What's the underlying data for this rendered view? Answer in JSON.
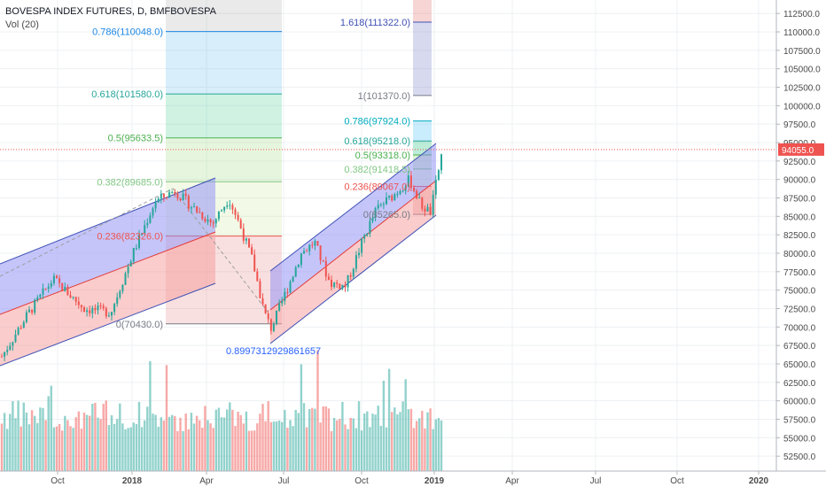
{
  "header": {
    "symbol_line": "BOVESPA INDEX FUTURES, D, BMFBOVESPA",
    "volume_line": "Vol (20)"
  },
  "chart_data": {
    "type": "candlestick",
    "price_axis": {
      "ticks": [
        52500,
        55000,
        57500,
        60000,
        62500,
        65000,
        67500,
        70000,
        72500,
        75000,
        77500,
        80000,
        82500,
        85000,
        87500,
        90000,
        92500,
        95000,
        97500,
        100000,
        102500,
        105000,
        107500,
        110000,
        112500
      ],
      "tick_labels": [
        "52500.0",
        "55000.0",
        "57500.0",
        "60000.0",
        "62500.0",
        "65000.0",
        "67500.0",
        "70000.0",
        "72500.0",
        "75000.0",
        "77500.0",
        "80000.0",
        "82500.0",
        "85000.0",
        "87500.0",
        "90000.0",
        "92500.0",
        "95000.0",
        "97500.0",
        "100000.0",
        "102500.0",
        "105000.0",
        "107500.0",
        "110000.0",
        "112500.0"
      ],
      "range": [
        50500,
        114000
      ]
    },
    "time_axis": {
      "labels": [
        "Oct",
        "2018",
        "Apr",
        "Jul",
        "Oct",
        "2019",
        "Apr",
        "Jul",
        "Oct",
        "2020"
      ],
      "positions": [
        "2017-10",
        "2018-01",
        "2018-04",
        "2018-07",
        "2018-10",
        "2019-01",
        "2019-04",
        "2019-07",
        "2019-10",
        "2020-01"
      ],
      "bold": [
        "2018",
        "2019",
        "2020"
      ]
    },
    "last_price": {
      "value": 94055,
      "label": "94055.0",
      "color": "#ef5350"
    },
    "fib_retracement_1": {
      "levels": [
        {
          "label": "0.786(110048.0)",
          "value": 110048,
          "color": "#1e88e5"
        },
        {
          "label": "0.618(101580.0)",
          "value": 101580,
          "color": "#26a69a"
        },
        {
          "label": "0.5(95633.5)",
          "value": 95633.5,
          "color": "#4caf50"
        },
        {
          "label": "0.382(89685.0)",
          "value": 89685,
          "color": "#81c784"
        },
        {
          "label": "0.236(82326.0)",
          "value": 82326,
          "color": "#ef5350"
        },
        {
          "label": "0(70430.0)",
          "value": 70430,
          "color": "#787b86"
        }
      ]
    },
    "fib_retracement_2": {
      "levels": [
        {
          "label": "1.618(111322.0)",
          "value": 111322,
          "color": "#3f51b5"
        },
        {
          "label": "1(101370.0)",
          "value": 101370,
          "color": "#787b86"
        },
        {
          "label": "0.786(97924.0)",
          "value": 97924,
          "color": "#00acc1"
        },
        {
          "label": "0.618(95218.0)",
          "value": 95218,
          "color": "#26a69a"
        },
        {
          "label": "0.5(93318.0)",
          "value": 93318,
          "color": "#4caf50"
        },
        {
          "label": "0.382(91418.5)",
          "value": 91418.5,
          "color": "#81c784"
        },
        {
          "label": "0.236(89067.0)",
          "value": 89067,
          "color": "#ef5350"
        },
        {
          "label": "0(85265.0)",
          "value": 85265,
          "color": "#787b86"
        }
      ]
    },
    "annotation": {
      "label": "0.8997312929861657",
      "color": "#2962ff"
    },
    "colors": {
      "up": "#26a69a",
      "down": "#ef5350",
      "grid": "#eef0f3",
      "channel_upper": "#8c8cf5",
      "channel_lower": "#f59a9a"
    }
  }
}
